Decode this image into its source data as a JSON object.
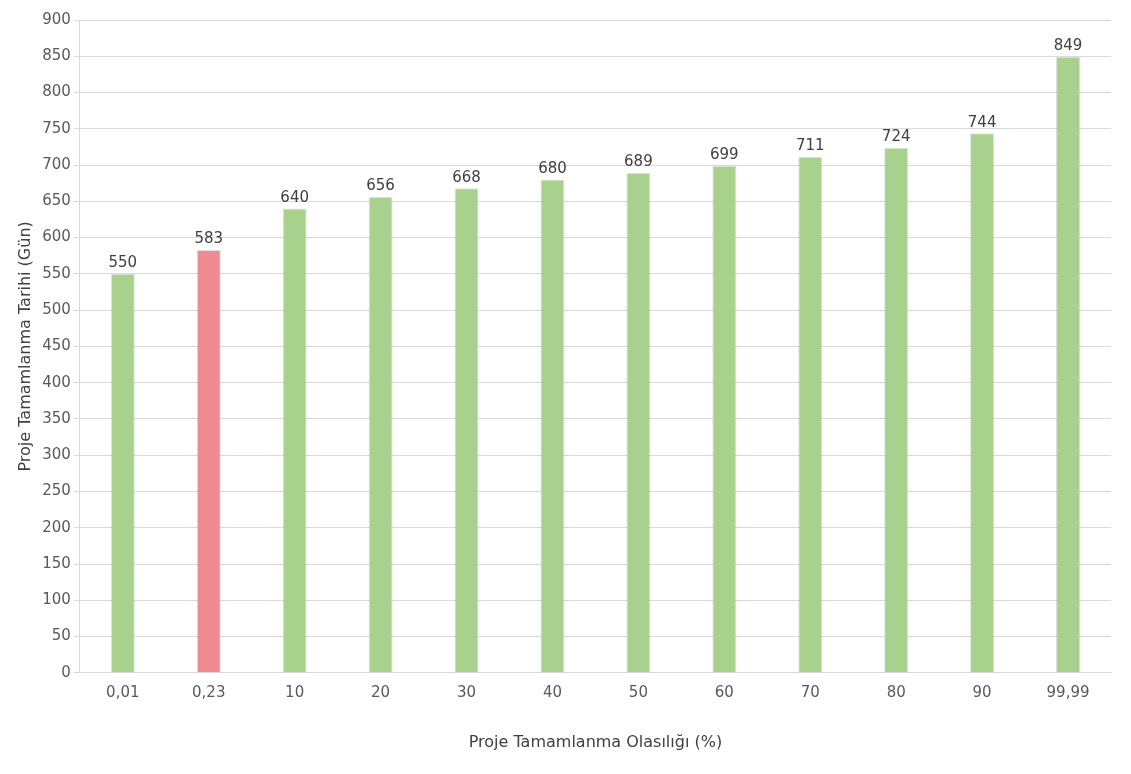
{
  "chart_data": {
    "type": "bar",
    "xlabel": "Proje Tamamlanma Olasılığı (%)",
    "ylabel": "Proje Tamamlanma Tarihi (Gün)",
    "categories": [
      "0,01",
      "0,23",
      "10",
      "20",
      "30",
      "40",
      "50",
      "60",
      "70",
      "80",
      "90",
      "99,99"
    ],
    "values": [
      550,
      583,
      640,
      656,
      668,
      680,
      689,
      699,
      711,
      724,
      744,
      849
    ],
    "colors": [
      "#a9d18e",
      "#ee8a92",
      "#a9d18e",
      "#a9d18e",
      "#a9d18e",
      "#a9d18e",
      "#a9d18e",
      "#a9d18e",
      "#a9d18e",
      "#a9d18e",
      "#a9d18e",
      "#a9d18e"
    ],
    "ylim": [
      0,
      900
    ],
    "yticks": [
      0,
      50,
      100,
      150,
      200,
      250,
      300,
      350,
      400,
      450,
      500,
      550,
      600,
      650,
      700,
      750,
      800,
      850,
      900
    ],
    "grid": "y",
    "data_labels": true,
    "legend": false
  }
}
